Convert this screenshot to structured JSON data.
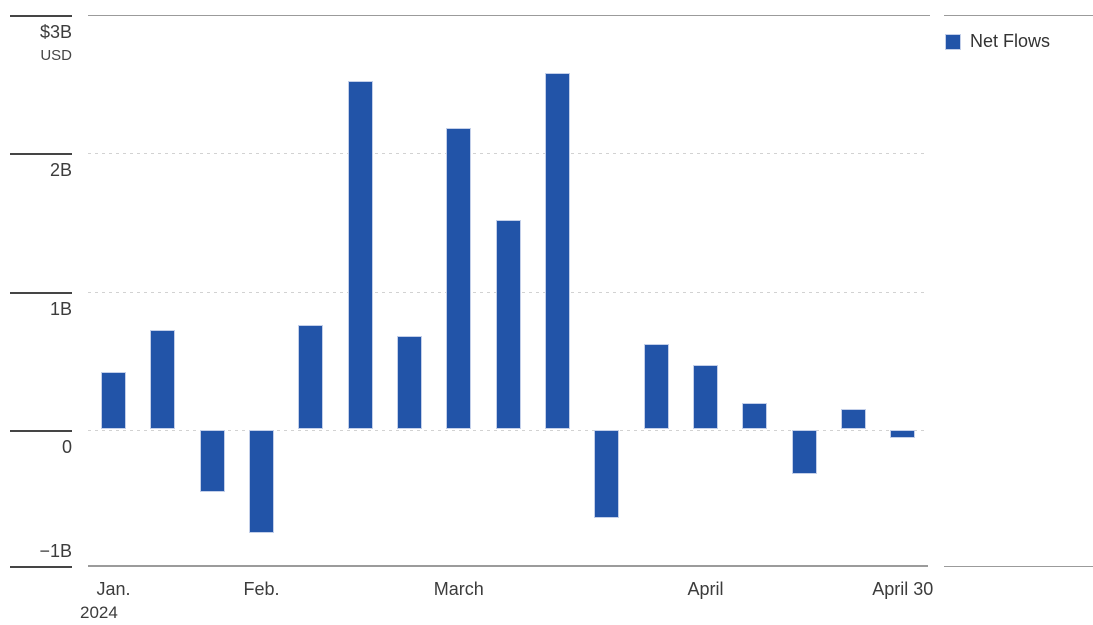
{
  "chart_data": {
    "type": "bar",
    "title": "",
    "unit_label": "USD",
    "currency_prefix": "$",
    "y_axis": {
      "ticks": [
        {
          "label": "$3B",
          "value": 3
        },
        {
          "label": "2B",
          "value": 2
        },
        {
          "label": "1B",
          "value": 1
        },
        {
          "label": "0",
          "value": 0
        },
        {
          "label": "−1B",
          "value": -1
        }
      ],
      "ylim": [
        -1,
        3
      ],
      "grid": "dotted-horizontal"
    },
    "series": [
      {
        "name": "Net Flows",
        "color": "#2254a8",
        "unit": "B USD",
        "values": [
          0.42,
          0.72,
          -0.45,
          -0.75,
          0.76,
          2.53,
          0.68,
          2.19,
          1.52,
          2.59,
          -0.64,
          0.62,
          0.47,
          0.19,
          -0.32,
          0.15,
          -0.06
        ]
      }
    ],
    "bar_count": 17,
    "x_labels": [
      {
        "label": "Jan.",
        "sublabel": "2024",
        "bar_index": 0
      },
      {
        "label": "Feb.",
        "bar_index": 3
      },
      {
        "label": "March",
        "bar_index": 7
      },
      {
        "label": "April",
        "bar_index": 12
      },
      {
        "label": "April 30",
        "bar_index": 16
      }
    ],
    "legend": {
      "position": "top-right",
      "items": [
        {
          "label": "Net Flows",
          "color": "#2254a8"
        }
      ]
    }
  },
  "legend": {
    "net_flows_label": "Net Flows"
  },
  "colors": {
    "bar_fill": "#2254a8",
    "bar_stroke": "#c3cfe9",
    "axis_line": "#9b9b9b",
    "tick_mark": "#454545",
    "gridline": "#d2d2d2",
    "label_text": "#3c3c3c"
  }
}
